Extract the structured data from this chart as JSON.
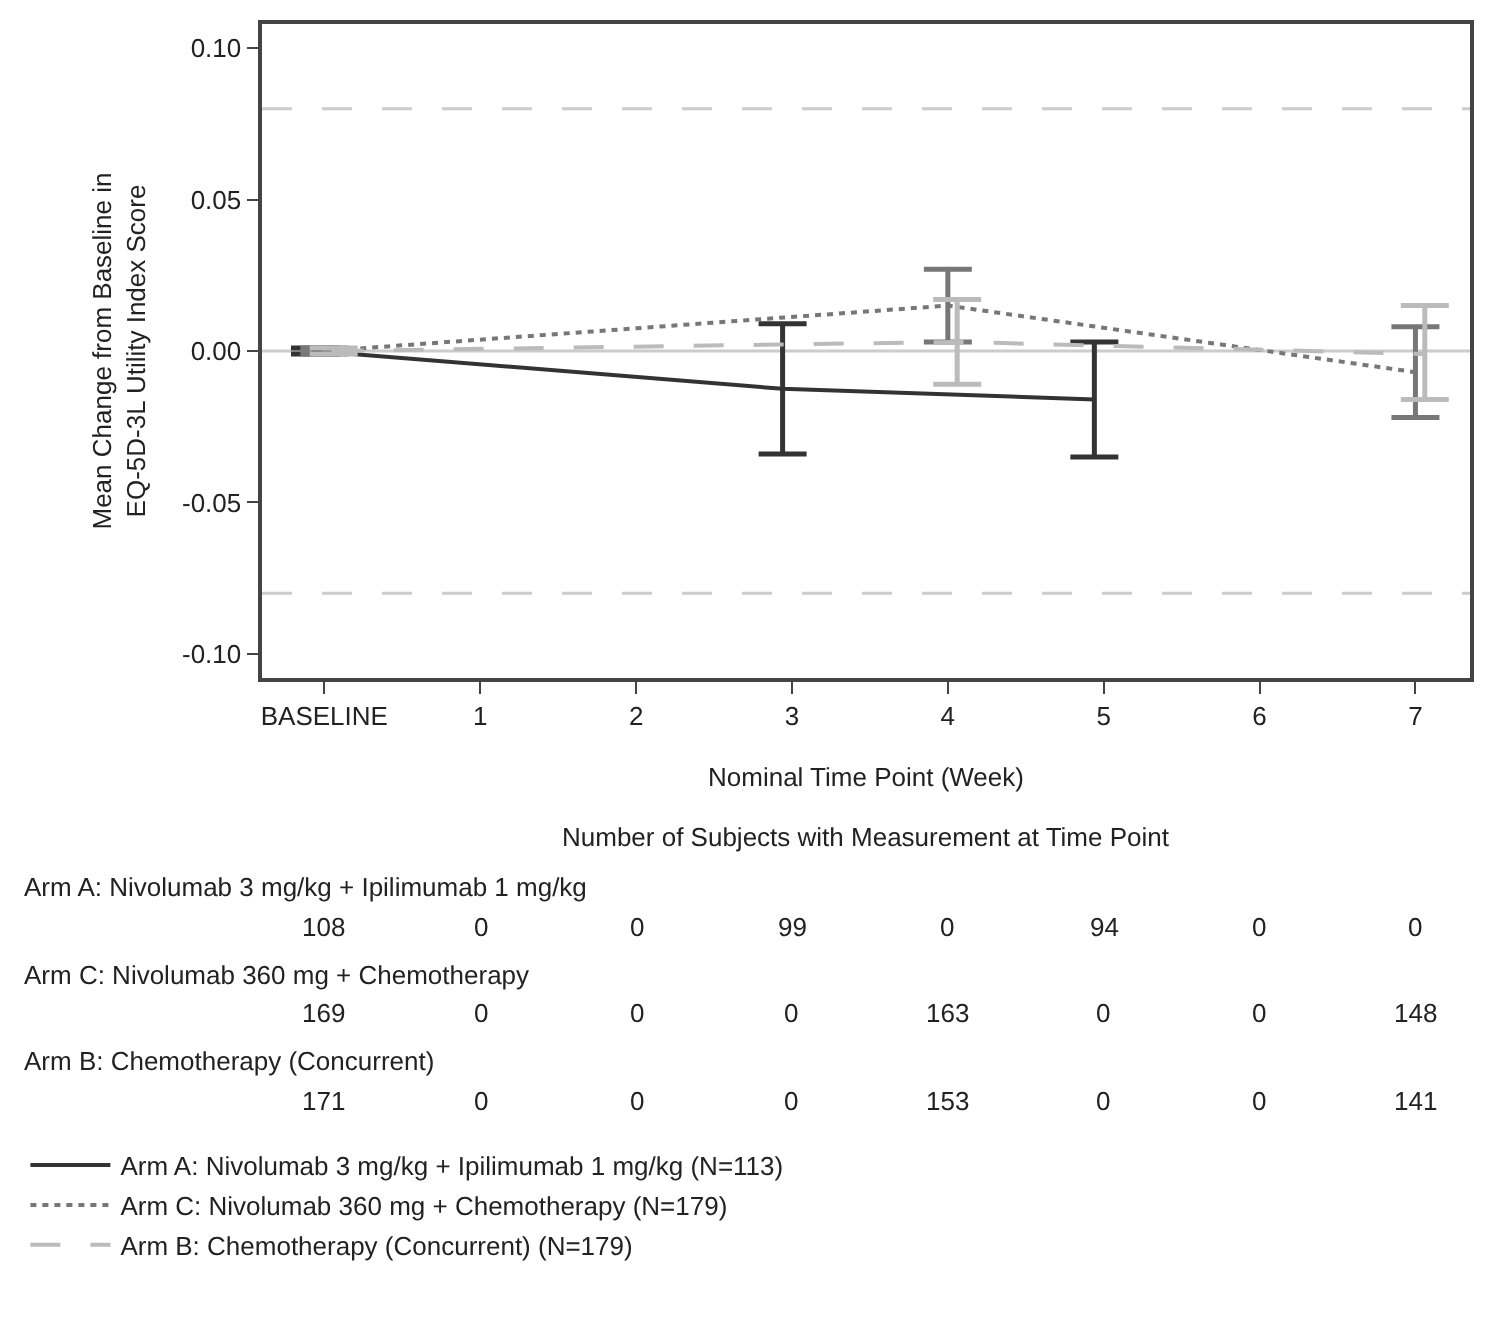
{
  "chart_data": {
    "type": "line",
    "ylabel": "Mean Change from Baseline in\nEQ-5D-3L Utility Index Score",
    "xlabel": "Nominal Time Point (Week)",
    "categories": [
      "BASELINE",
      "1",
      "2",
      "3",
      "4",
      "5",
      "6",
      "7"
    ],
    "ylim": [
      -0.108,
      0.108
    ],
    "yticks": [
      {
        "value": -0.1,
        "label": "-0.10"
      },
      {
        "value": -0.05,
        "label": "-0.05"
      },
      {
        "value": 0,
        "label": "0.00"
      },
      {
        "value": 0.05,
        "label": "0.05"
      },
      {
        "value": 0.1,
        "label": "0.10"
      }
    ],
    "grid": false,
    "legend": "bottom",
    "marker": "none",
    "series": [
      {
        "name": "Arm A: Nivolumab 3 mg/kg + Ipilimumab 1 mg/kg (N=113)",
        "color": "#333333",
        "line_style": "solid",
        "values": [
          0,
          null,
          null,
          -0.0125,
          null,
          -0.016,
          null,
          null
        ],
        "errors": [
          0.001,
          null,
          null,
          [
            -0.034,
            0.009
          ],
          null,
          [
            -0.035,
            0.003
          ],
          null,
          null
        ]
      },
      {
        "name": "Arm C: Nivolumab 360 mg + Chemotherapy (N=179)",
        "color": "#777777",
        "line_style": "dotted",
        "values": [
          0,
          null,
          null,
          null,
          0.015,
          null,
          null,
          -0.007
        ],
        "errors": [
          0.001,
          null,
          null,
          null,
          [
            0.003,
            0.027
          ],
          null,
          null,
          [
            -0.022,
            0.008
          ]
        ]
      },
      {
        "name": "Arm B: Chemotherapy (Concurrent) (N=179)",
        "color": "#bbbbbb",
        "line_style": "dashed",
        "values": [
          0,
          null,
          null,
          null,
          0.003,
          null,
          null,
          -0.001
        ],
        "errors": [
          0.001,
          null,
          null,
          null,
          [
            -0.011,
            0.017
          ],
          null,
          null,
          [
            -0.016,
            0.015
          ]
        ]
      }
    ],
    "ref_lines": [
      {
        "axis": "y",
        "value": 0.08,
        "color": "#cccccc",
        "line_style": "dashed"
      },
      {
        "axis": "y",
        "value": -0.08,
        "color": "#cccccc",
        "line_style": "dashed"
      },
      {
        "axis": "y",
        "value": 0,
        "color": "#cccccc",
        "line_style": "solid"
      }
    ],
    "annotations": [
      "Number of Subjects with Measurement at Time Point",
      "Arm A: Nivolumab 3 mg/kg + Ipilimumab 1 mg/kg",
      "108",
      "0",
      "0",
      "99",
      "0",
      "94",
      "0",
      "0",
      "Arm C: Nivolumab 360 mg + Chemotherapy",
      "169",
      "0",
      "0",
      "0",
      "163",
      "0",
      "0",
      "148",
      "Arm B: Chemotherapy (Concurrent)",
      "171",
      "0",
      "0",
      "0",
      "153",
      "0",
      "0",
      "141"
    ]
  }
}
